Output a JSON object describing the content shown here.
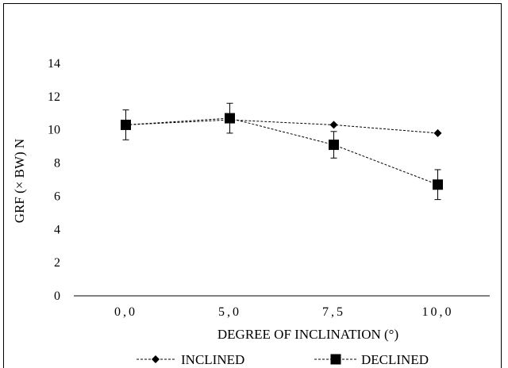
{
  "chart_data": {
    "type": "line",
    "title": "",
    "xlabel": "DEGREE OF INCLINATION  (°)",
    "ylabel": "GRF (× BW) N",
    "categories": [
      "0,0",
      "5,0",
      "7,5",
      "10,0"
    ],
    "ylim": [
      0,
      14
    ],
    "yticks": [
      "0",
      "2",
      "4",
      "6",
      "8",
      "10",
      "12",
      "14"
    ],
    "grid": false,
    "legend_position": "bottom",
    "series": [
      {
        "name": "INCLINED",
        "marker": "diamond",
        "line_style": "dashed",
        "color": "#000000",
        "values": [
          10.3,
          10.6,
          10.3,
          9.8
        ],
        "errors": [
          null,
          null,
          null,
          null
        ]
      },
      {
        "name": "DECLINED",
        "marker": "square",
        "line_style": "dashed",
        "color": "#000000",
        "values": [
          10.3,
          10.7,
          9.1,
          6.7
        ],
        "errors": [
          0.9,
          0.9,
          0.8,
          0.9
        ]
      }
    ]
  }
}
